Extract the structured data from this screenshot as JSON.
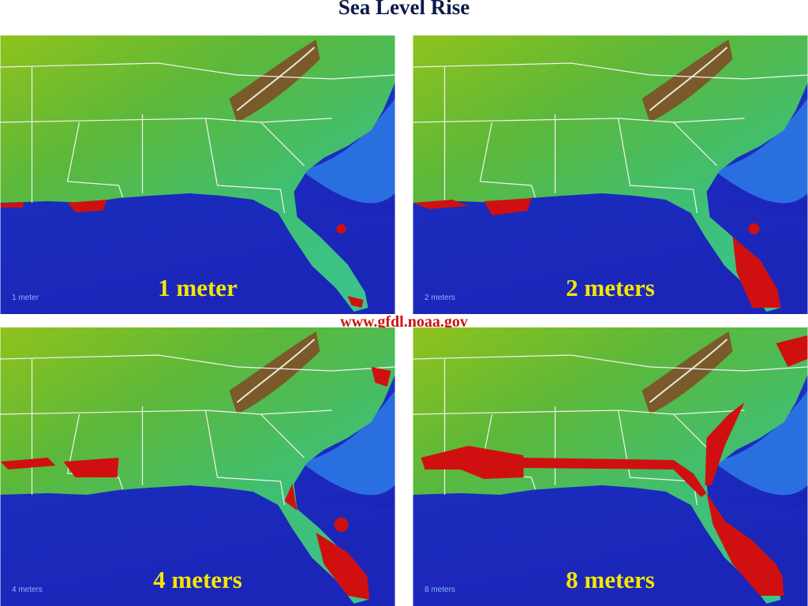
{
  "title": "Sea Level Rise",
  "source": "www.gfdl.noaa.gov",
  "panels": [
    {
      "caption": "1 meter",
      "small_label": "1 meter"
    },
    {
      "caption": "2 meters",
      "small_label": "2 meters"
    },
    {
      "caption": "4 meters",
      "small_label": "4 meters"
    },
    {
      "caption": "8 meters",
      "small_label": "8 meters"
    }
  ]
}
